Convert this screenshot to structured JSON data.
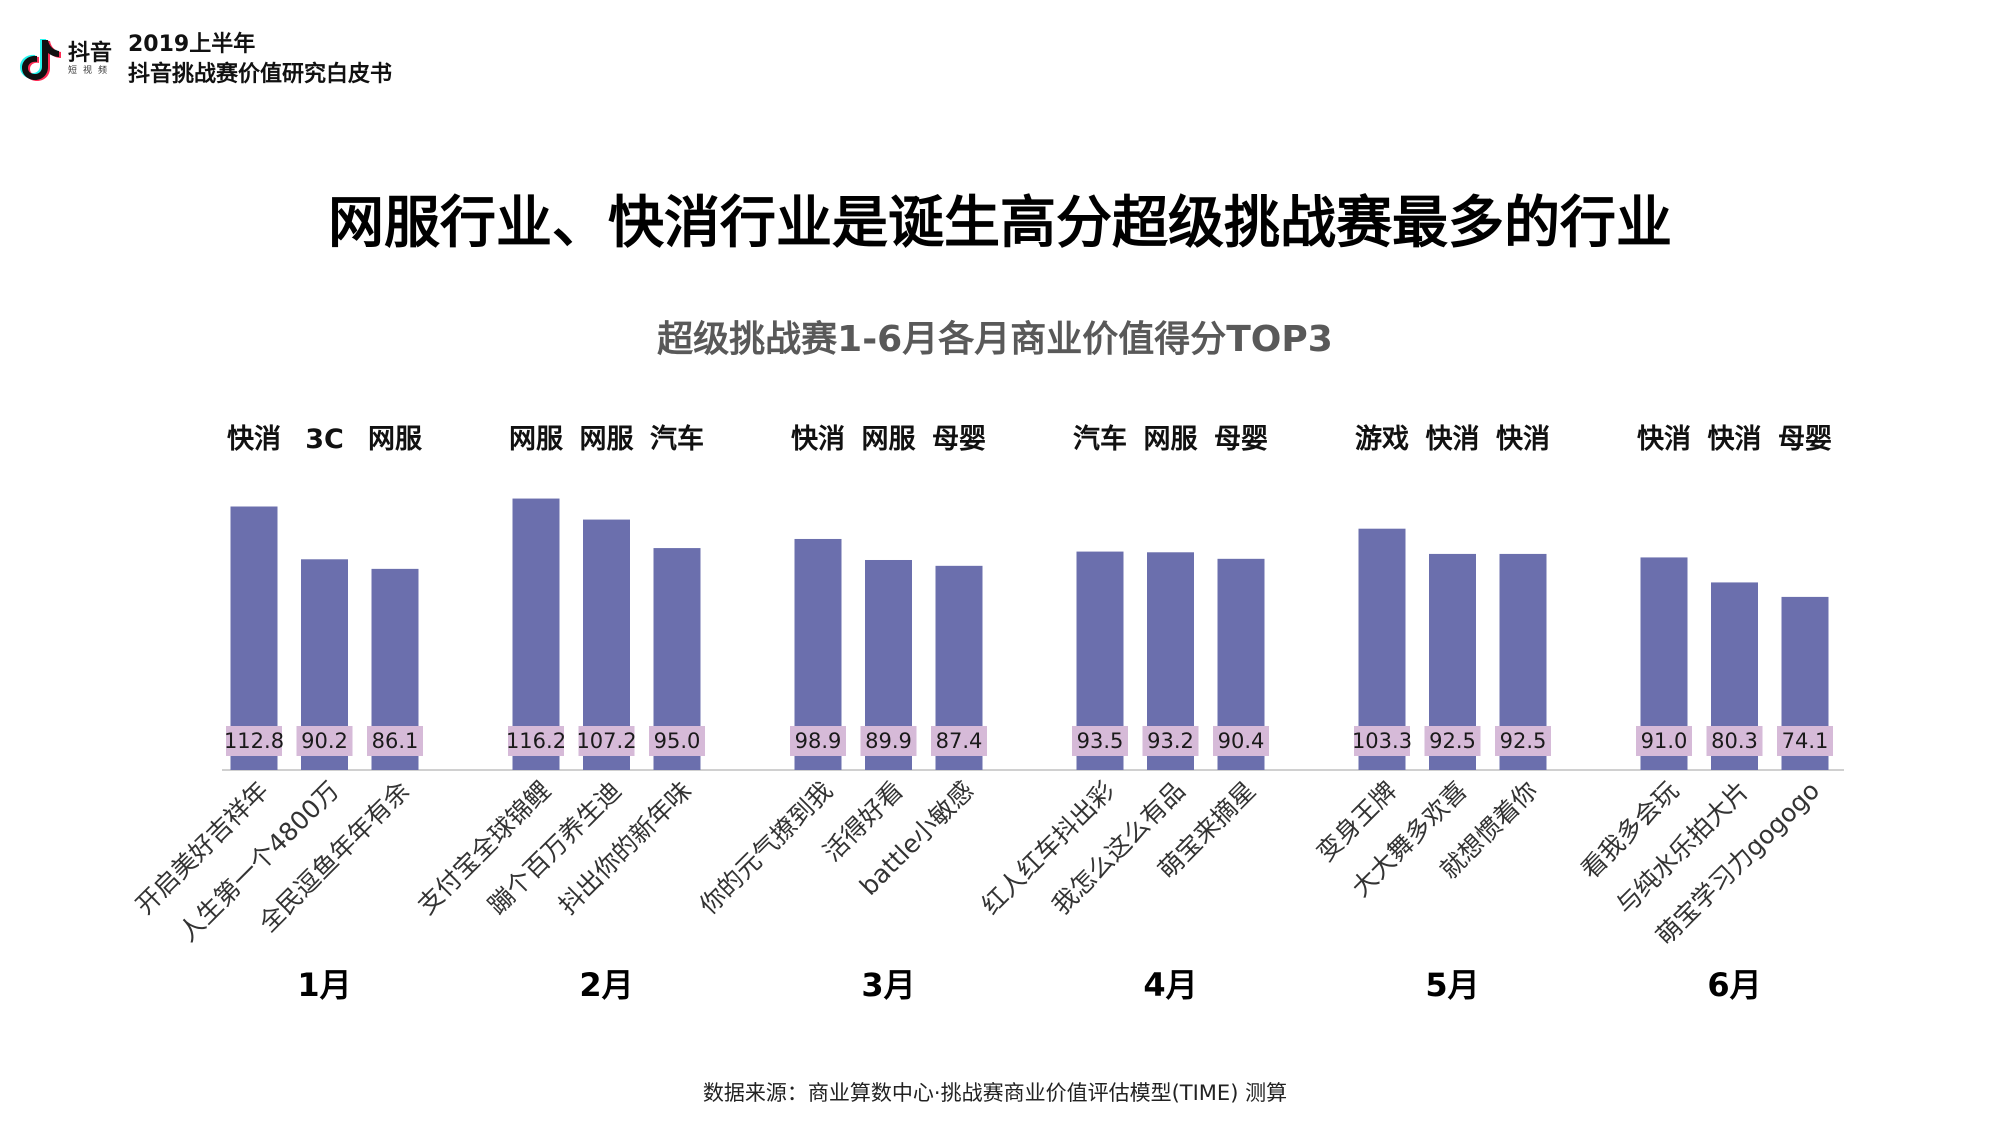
{
  "header": {
    "brand": "抖音",
    "brand_sub": "短视频",
    "report_title_line1": "2019上半年",
    "report_title_line2": "抖音挑战赛价值研究白皮书"
  },
  "headline": "网服行业、快消行业是诞生高分超级挑战赛最多的行业",
  "source": "数据来源：商业算数中心·挑战赛商业价值评估模型(TIME) 测算",
  "colors": {
    "bar": "#6b6fad",
    "label_bg": "#d6bad8",
    "baseline": "#d0d0d0"
  },
  "chart_data": {
    "type": "bar",
    "title": "超级挑战赛1-6月各月商业价值得分TOP3",
    "ylim": [
      0,
      125
    ],
    "grid": false,
    "groups": [
      {
        "month": "1月",
        "bars": [
          {
            "industry": "快消",
            "challenge": "开启美好吉祥年",
            "value": 112.8
          },
          {
            "industry": "3C",
            "challenge": "人生第一个4800万",
            "value": 90.2
          },
          {
            "industry": "网服",
            "challenge": "全民逗鱼年年有余",
            "value": 86.1
          }
        ]
      },
      {
        "month": "2月",
        "bars": [
          {
            "industry": "网服",
            "challenge": "支付宝全球锦鲤",
            "value": 116.2
          },
          {
            "industry": "网服",
            "challenge": "蹦个百万养生迪",
            "value": 107.2
          },
          {
            "industry": "汽车",
            "challenge": "抖出你的新年味",
            "value": 95.0
          }
        ]
      },
      {
        "month": "3月",
        "bars": [
          {
            "industry": "快消",
            "challenge": "你的元气撩到我",
            "value": 98.9
          },
          {
            "industry": "网服",
            "challenge": "活得好看",
            "value": 89.9
          },
          {
            "industry": "母婴",
            "challenge": "battle小敏感",
            "value": 87.4
          }
        ]
      },
      {
        "month": "4月",
        "bars": [
          {
            "industry": "汽车",
            "challenge": "红人红车抖出彩",
            "value": 93.5
          },
          {
            "industry": "网服",
            "challenge": "我怎么这么有品",
            "value": 93.2
          },
          {
            "industry": "母婴",
            "challenge": "萌宝来摘星",
            "value": 90.4
          }
        ]
      },
      {
        "month": "5月",
        "bars": [
          {
            "industry": "游戏",
            "challenge": "变身王牌",
            "value": 103.3
          },
          {
            "industry": "快消",
            "challenge": "大大舞多欢喜",
            "value": 92.5
          },
          {
            "industry": "快消",
            "challenge": "就想惯着你",
            "value": 92.5
          }
        ]
      },
      {
        "month": "6月",
        "bars": [
          {
            "industry": "快消",
            "challenge": "看我多会玩",
            "value": 91.0
          },
          {
            "industry": "快消",
            "challenge": "与纯水乐拍大片",
            "value": 80.3
          },
          {
            "industry": "母婴",
            "challenge": "萌宝学习力gogogo",
            "value": 74.1
          }
        ]
      }
    ]
  }
}
